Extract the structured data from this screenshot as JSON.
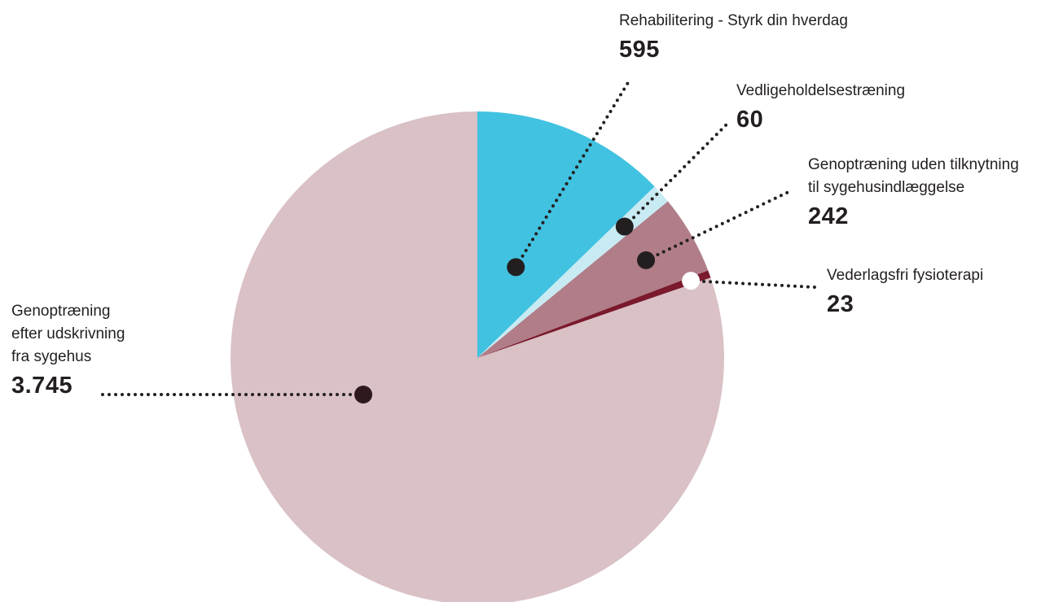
{
  "chart_data": {
    "type": "pie",
    "title": "",
    "slices": [
      {
        "label_lines": [
          "Rehabilitering - Styrk din hverdag"
        ],
        "value_text": "595",
        "value": 595,
        "color": "#41c2e0",
        "marker_color": "#231f20"
      },
      {
        "label_lines": [
          "Vedligeholdelsestræning"
        ],
        "value_text": "60",
        "value": 60,
        "color": "#c8ebf3",
        "marker_color": "#231f20"
      },
      {
        "label_lines": [
          "Genoptræning uden tilknytning",
          "til sygehusindlæggelse"
        ],
        "value_text": "242",
        "value": 242,
        "color": "#b07d88",
        "marker_color": "#231f20"
      },
      {
        "label_lines": [
          "Vederlagsfri fysioterapi"
        ],
        "value_text": "23",
        "value": 23,
        "color": "#7a1a2c",
        "marker_color": "#ffffff"
      },
      {
        "label_lines": [
          "Genoptræning",
          "efter udskrivning",
          "fra sygehus"
        ],
        "value_text": "3.745",
        "value": 3745,
        "color": "#d9c1c6",
        "marker_color": "#2e1a1e"
      }
    ]
  }
}
